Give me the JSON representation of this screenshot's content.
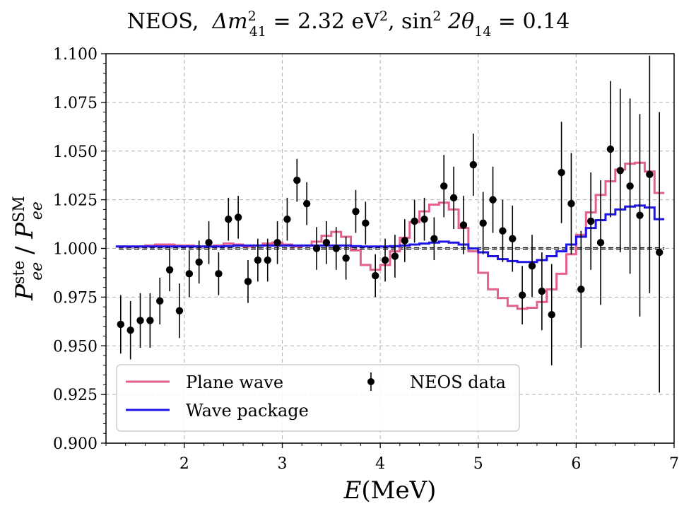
{
  "chart_data": {
    "type": "line",
    "title": {
      "experiment": "NEOS,",
      "delta_symbol": "Δm",
      "delta_sub": "41",
      "delta_sup": "2",
      "delta_value": " = 2.32 eV",
      "unit_sup": "2",
      "sin_part": ", sin",
      "sin_sup": "2",
      "theta_part": " 2θ",
      "theta_sub": "14",
      "theta_value": " = 0.14"
    },
    "xlabel": {
      "main": "E",
      "rest": "(MeV)"
    },
    "ylabel": {
      "p1": "P",
      "p1_sup": "ste",
      "p1_sub": "ee",
      "slash": " / ",
      "p2": "P",
      "p2_sup": "SM",
      "p2_sub": "ee"
    },
    "xlim": [
      1.2,
      7.0
    ],
    "ylim": [
      0.9,
      1.1
    ],
    "x_ticks": [
      2,
      3,
      4,
      5,
      6,
      7
    ],
    "x_tick_labels": [
      "2",
      "3",
      "4",
      "5",
      "6",
      "7"
    ],
    "y_ticks": [
      0.9,
      0.925,
      0.95,
      0.975,
      1.0,
      1.025,
      1.05,
      1.075,
      1.1
    ],
    "y_tick_labels": [
      "0.900",
      "0.925",
      "0.950",
      "0.975",
      "1.000",
      "1.025",
      "1.050",
      "1.075",
      "1.100"
    ],
    "grid": true,
    "reference_line": 1.0,
    "legend": {
      "position": "bottom-left",
      "entries": [
        {
          "label": "Plane wave",
          "color": "#e3608f",
          "kind": "line"
        },
        {
          "label": "Wave package",
          "color": "#1e14e6",
          "kind": "line"
        },
        {
          "label": "NEOS data",
          "color": "#000000",
          "kind": "errorbar"
        }
      ]
    },
    "series": [
      {
        "name": "Plane wave",
        "color": "#e3608f",
        "step": true,
        "x": [
          1.3,
          1.4,
          1.5,
          1.6,
          1.7,
          1.8,
          1.9,
          2.0,
          2.1,
          2.2,
          2.3,
          2.4,
          2.5,
          2.6,
          2.7,
          2.8,
          2.9,
          3.0,
          3.1,
          3.2,
          3.3,
          3.4,
          3.5,
          3.6,
          3.7,
          3.8,
          3.9,
          4.0,
          4.1,
          4.2,
          4.3,
          4.4,
          4.5,
          4.6,
          4.7,
          4.8,
          4.9,
          5.0,
          5.1,
          5.2,
          5.3,
          5.4,
          5.5,
          5.6,
          5.7,
          5.8,
          5.9,
          6.0,
          6.1,
          6.2,
          6.3,
          6.4,
          6.5,
          6.6,
          6.7,
          6.8,
          6.9
        ],
        "values": [
          1.001,
          1.001,
          1.001,
          1.0015,
          1.002,
          1.002,
          1.0015,
          1.0015,
          1.001,
          1.001,
          1.0015,
          1.0025,
          1.002,
          1.001,
          1.0015,
          1.0025,
          1.003,
          1.002,
          1.001,
          1.0015,
          1.0035,
          1.0065,
          1.0085,
          1.006,
          0.999,
          0.9915,
          0.989,
          0.9915,
          0.9985,
          1.0055,
          1.0135,
          1.019,
          1.0225,
          1.0235,
          1.02,
          1.0105,
          0.9985,
          0.9875,
          0.979,
          0.9745,
          0.9705,
          0.969,
          0.9695,
          0.9725,
          0.979,
          0.987,
          0.997,
          1.007,
          1.0185,
          1.0275,
          1.0345,
          1.0405,
          1.0435,
          1.044,
          1.0395,
          1.0285,
          1.0285
        ]
      },
      {
        "name": "Wave package",
        "color": "#1e14e6",
        "step": true,
        "x": [
          1.3,
          1.4,
          1.5,
          1.6,
          1.7,
          1.8,
          1.9,
          2.0,
          2.1,
          2.2,
          2.3,
          2.4,
          2.5,
          2.6,
          2.7,
          2.8,
          2.9,
          3.0,
          3.1,
          3.2,
          3.3,
          3.4,
          3.5,
          3.6,
          3.7,
          3.8,
          3.9,
          4.0,
          4.1,
          4.2,
          4.3,
          4.4,
          4.5,
          4.6,
          4.7,
          4.8,
          4.9,
          5.0,
          5.1,
          5.2,
          5.3,
          5.4,
          5.5,
          5.6,
          5.7,
          5.8,
          5.9,
          6.0,
          6.1,
          6.2,
          6.3,
          6.4,
          6.5,
          6.6,
          6.7,
          6.8,
          6.9
        ],
        "values": [
          1.001,
          1.001,
          1.001,
          1.001,
          1.001,
          1.001,
          1.001,
          1.001,
          1.001,
          1.001,
          1.001,
          1.0012,
          1.0015,
          1.0015,
          1.0015,
          1.0015,
          1.0015,
          1.0015,
          1.0015,
          1.0015,
          1.0015,
          1.0015,
          1.0015,
          1.0015,
          1.0012,
          1.001,
          1.001,
          1.001,
          1.0012,
          1.0015,
          1.002,
          1.0025,
          1.003,
          1.0035,
          1.003,
          1.002,
          1.0,
          0.998,
          0.996,
          0.9945,
          0.9935,
          0.993,
          0.993,
          0.994,
          0.996,
          0.9985,
          1.002,
          1.006,
          1.0105,
          1.0145,
          1.0175,
          1.02,
          1.0215,
          1.022,
          1.021,
          1.015,
          1.015
        ]
      },
      {
        "name": "NEOS data",
        "color": "#000000",
        "kind": "errorbar",
        "x": [
          1.35,
          1.45,
          1.55,
          1.65,
          1.75,
          1.85,
          1.95,
          2.05,
          2.15,
          2.25,
          2.35,
          2.45,
          2.55,
          2.65,
          2.75,
          2.85,
          2.95,
          3.05,
          3.15,
          3.25,
          3.35,
          3.45,
          3.55,
          3.65,
          3.75,
          3.85,
          3.95,
          4.05,
          4.15,
          4.25,
          4.35,
          4.45,
          4.55,
          4.65,
          4.75,
          4.85,
          4.95,
          5.05,
          5.15,
          5.25,
          5.35,
          5.45,
          5.55,
          5.65,
          5.75,
          5.85,
          5.95,
          6.05,
          6.15,
          6.25,
          6.35,
          6.45,
          6.55,
          6.65,
          6.75,
          6.85
        ],
        "y": [
          0.961,
          0.958,
          0.963,
          0.963,
          0.973,
          0.989,
          0.968,
          0.987,
          0.993,
          1.003,
          0.987,
          1.015,
          1.016,
          0.983,
          0.994,
          0.994,
          1.003,
          1.015,
          1.035,
          1.023,
          1.0,
          1.003,
          1.0,
          0.995,
          1.019,
          1.013,
          0.986,
          0.994,
          0.996,
          1.004,
          1.014,
          1.015,
          1.005,
          1.032,
          1.026,
          1.012,
          1.043,
          1.013,
          1.025,
          1.009,
          1.005,
          0.976,
          0.991,
          0.978,
          0.966,
          1.039,
          1.023,
          0.979,
          1.014,
          1.003,
          1.051,
          1.04,
          1.032,
          1.017,
          1.038,
          0.998
        ],
        "yerr": [
          0.015,
          0.015,
          0.014,
          0.014,
          0.012,
          0.011,
          0.014,
          0.012,
          0.011,
          0.011,
          0.011,
          0.011,
          0.011,
          0.011,
          0.011,
          0.011,
          0.011,
          0.011,
          0.011,
          0.011,
          0.011,
          0.011,
          0.011,
          0.011,
          0.011,
          0.011,
          0.011,
          0.011,
          0.011,
          0.011,
          0.011,
          0.011,
          0.011,
          0.016,
          0.016,
          0.015,
          0.016,
          0.016,
          0.017,
          0.016,
          0.017,
          0.015,
          0.016,
          0.02,
          0.026,
          0.026,
          0.026,
          0.03,
          0.025,
          0.032,
          0.035,
          0.042,
          0.045,
          0.052,
          0.061,
          0.072
        ]
      }
    ]
  }
}
